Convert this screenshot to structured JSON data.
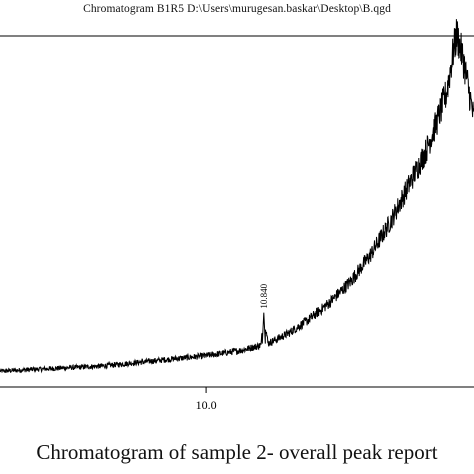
{
  "header": {
    "title": "Chromatogram B1R5 D:\\Users\\murugesan.baskar\\Desktop\\B.qgd"
  },
  "caption": "Chromatogram of sample 2- overall peak report",
  "colors": {
    "trace": "#000000",
    "axis": "#000000",
    "background": "#ffffff"
  },
  "chart_data": {
    "type": "line",
    "title": "Chromatogram B1R5 D:\\Users\\murugesan.baskar\\Desktop\\B.qgd",
    "xlabel": "",
    "ylabel": "",
    "xlim": [
      7.0,
      13.9
    ],
    "x_ticks": [
      10.0
    ],
    "x_tick_labels": [
      "10.0"
    ],
    "grid": false,
    "legend": "none",
    "peak_annotations": [
      {
        "x": 10.84,
        "label": "10.840"
      }
    ],
    "series": [
      {
        "values_note": "",
        "x": [
          7.0,
          7.5,
          8.0,
          8.5,
          9.0,
          9.5,
          10.0,
          10.5,
          10.8,
          10.84,
          10.9,
          11.2,
          11.5,
          11.8,
          12.1,
          12.4,
          12.7,
          13.0,
          13.2,
          13.35,
          13.5,
          13.6,
          13.65,
          13.75,
          13.9
        ],
        "y": [
          0.02,
          0.025,
          0.03,
          0.035,
          0.045,
          0.055,
          0.065,
          0.08,
          0.095,
          0.19,
          0.1,
          0.13,
          0.17,
          0.22,
          0.28,
          0.36,
          0.46,
          0.58,
          0.66,
          0.74,
          0.83,
          0.95,
          1.0,
          0.92,
          0.75
        ]
      }
    ]
  }
}
